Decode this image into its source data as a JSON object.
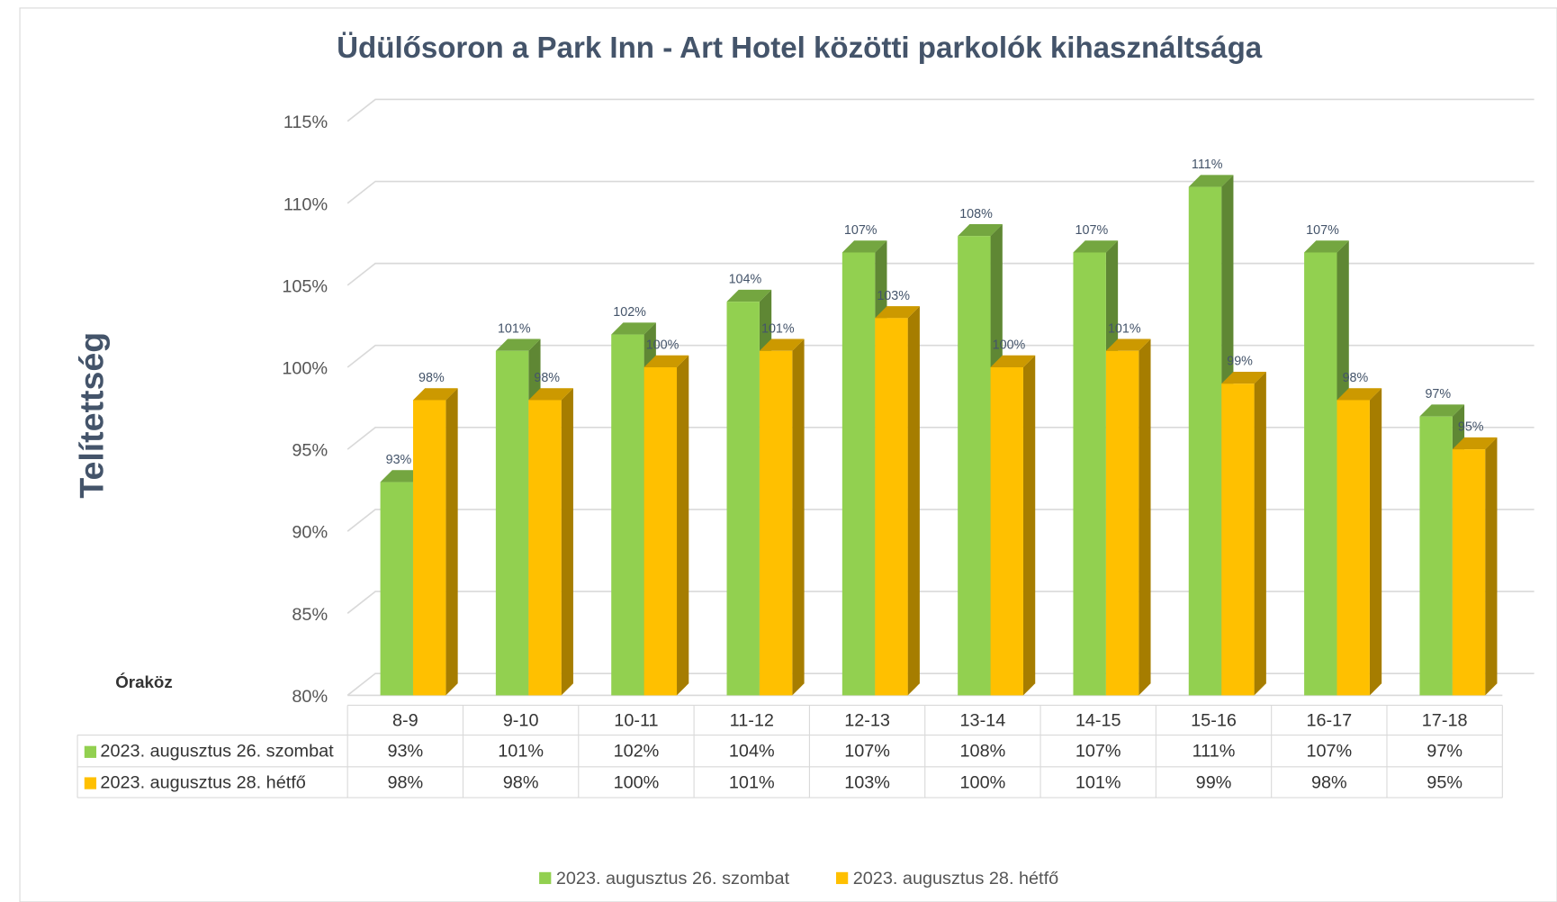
{
  "chart_data": {
    "type": "bar",
    "title": "Üdülősoron a Park Inn - Art Hotel közötti parkolók kihasználtsága",
    "y_label": "Telítettség",
    "x_label": "Óraköz",
    "categories": [
      "8-9",
      "9-10",
      "10-11",
      "11-12",
      "12-13",
      "13-14",
      "14-15",
      "15-16",
      "16-17",
      "17-18"
    ],
    "series": [
      {
        "name": "2023. augusztus 26. szombat",
        "color": "#92d050",
        "values": [
          93,
          101,
          102,
          104,
          107,
          108,
          107,
          111,
          107,
          97
        ],
        "value_labels": [
          "93%",
          "101%",
          "102%",
          "104%",
          "107%",
          "108%",
          "107%",
          "111%",
          "107%",
          "97%"
        ]
      },
      {
        "name": "2023. augusztus 28. hétfő",
        "color": "#ffc000",
        "values": [
          98,
          98,
          100,
          101,
          103,
          100,
          101,
          99,
          98,
          95
        ],
        "value_labels": [
          "98%",
          "98%",
          "100%",
          "101%",
          "103%",
          "100%",
          "101%",
          "99%",
          "98%",
          "95%"
        ]
      }
    ],
    "ylim": [
      80,
      115
    ],
    "yticks": [
      {
        "value": 80,
        "label": "80%"
      },
      {
        "value": 85,
        "label": "85%"
      },
      {
        "value": 90,
        "label": "90%"
      },
      {
        "value": 95,
        "label": "95%"
      },
      {
        "value": 100,
        "label": "100%"
      },
      {
        "value": 105,
        "label": "105%"
      },
      {
        "value": 110,
        "label": "110%"
      },
      {
        "value": 115,
        "label": "115%"
      }
    ],
    "grid": true,
    "legend": "bottom"
  }
}
